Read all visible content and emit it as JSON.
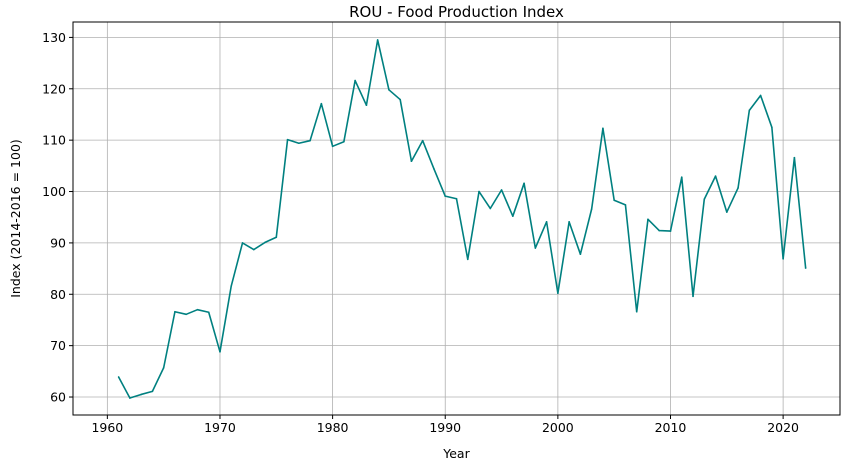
{
  "chart_data": {
    "type": "line",
    "title": "ROU - Food Production Index",
    "xlabel": "Year",
    "ylabel": "Index (2014-2016 = 100)",
    "xlim": [
      1956.95,
      2025.05
    ],
    "ylim": [
      56.5,
      133.0
    ],
    "xticks": [
      1960,
      1970,
      1980,
      1990,
      2000,
      2010,
      2020
    ],
    "yticks": [
      60,
      70,
      80,
      90,
      100,
      110,
      120,
      130
    ],
    "grid": true,
    "legend": "none",
    "line_color": "#008080",
    "series": [
      {
        "x": [
          1961,
          1962,
          1963,
          1964,
          1965,
          1966,
          1967,
          1968,
          1969,
          1970,
          1971,
          1972,
          1973,
          1974,
          1975,
          1976,
          1977,
          1978,
          1979,
          1980,
          1981,
          1982,
          1983,
          1984,
          1985,
          1986,
          1987,
          1988,
          1989,
          1990,
          1991,
          1992,
          1993,
          1994,
          1995,
          1996,
          1997,
          1998,
          1999,
          2000,
          2001,
          2002,
          2003,
          2004,
          2005,
          2006,
          2007,
          2008,
          2009,
          2010,
          2011,
          2012,
          2013,
          2014,
          2015,
          2016,
          2017,
          2018,
          2019,
          2020,
          2021,
          2022
        ],
        "y": [
          63.9,
          59.8,
          60.5,
          61.1,
          65.7,
          76.6,
          76.1,
          77.0,
          76.5,
          68.8,
          81.6,
          90.0,
          88.7,
          90.1,
          91.1,
          110.1,
          109.4,
          109.9,
          117.1,
          108.8,
          109.7,
          121.6,
          116.8,
          129.5,
          119.8,
          117.9,
          105.9,
          109.9,
          104.4,
          99.1,
          98.6,
          86.8,
          100.0,
          96.7,
          100.3,
          95.2,
          101.6,
          89.0,
          94.1,
          80.2,
          94.1,
          87.8,
          96.6,
          112.3,
          98.3,
          97.4,
          76.6,
          94.6,
          92.4,
          92.3,
          102.8,
          79.6,
          98.5,
          103.0,
          96.0,
          100.7,
          115.8,
          118.7,
          112.5,
          86.9,
          106.6,
          85.1
        ]
      }
    ]
  }
}
